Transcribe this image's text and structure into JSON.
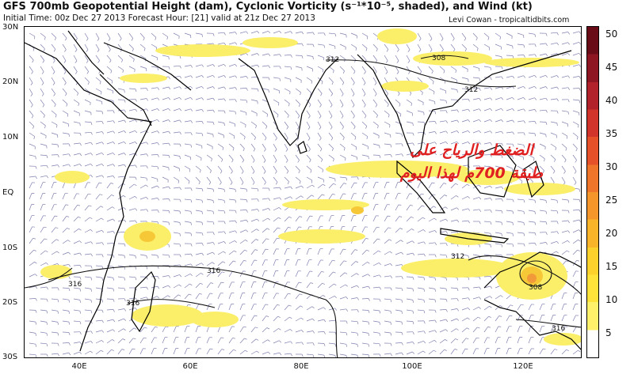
{
  "header": {
    "title": "GFS 700mb Geopotential Height (dam), Cyclonic Vorticity (s⁻¹*10⁻⁵, shaded), and Wind (kt)",
    "subtitle": "Initial Time: 00z Dec 27 2013 Forecast Hour: [21] valid at 21z Dec 27 2013",
    "credit": "Levi Cowan - tropicaltidbits.com"
  },
  "axes": {
    "lat_labels": [
      "30N",
      "20N",
      "10N",
      "EQ",
      "10S",
      "20S",
      "30S"
    ],
    "lon_labels": [
      "40E",
      "60E",
      "80E",
      "100E",
      "120E"
    ]
  },
  "contour_labels": [
    "312",
    "308",
    "312",
    "312",
    "308",
    "316",
    "316",
    "316",
    "316"
  ],
  "colorbar": {
    "ticks": [
      "50",
      "45",
      "40",
      "35",
      "30",
      "25",
      "20",
      "15",
      "10",
      "5"
    ],
    "colors": [
      "#ffffff",
      "#fff16a",
      "#ffe23a",
      "#fcd12c",
      "#f9b42a",
      "#f5962a",
      "#ef752a",
      "#e5522a",
      "#d0342a",
      "#b2222a",
      "#8e1522",
      "#6a0c18"
    ]
  },
  "overlay_text": {
    "line1": "الضغط والرياح على",
    "line2": "طبقة 700م لهذا اليوم",
    "color": "#e02020"
  },
  "colors": {
    "land": "#000000",
    "barbs": "#8080b0",
    "vort_light": "#fbef6a",
    "vort_mid": "#f6c837",
    "vort_core": "#f29a3a"
  }
}
